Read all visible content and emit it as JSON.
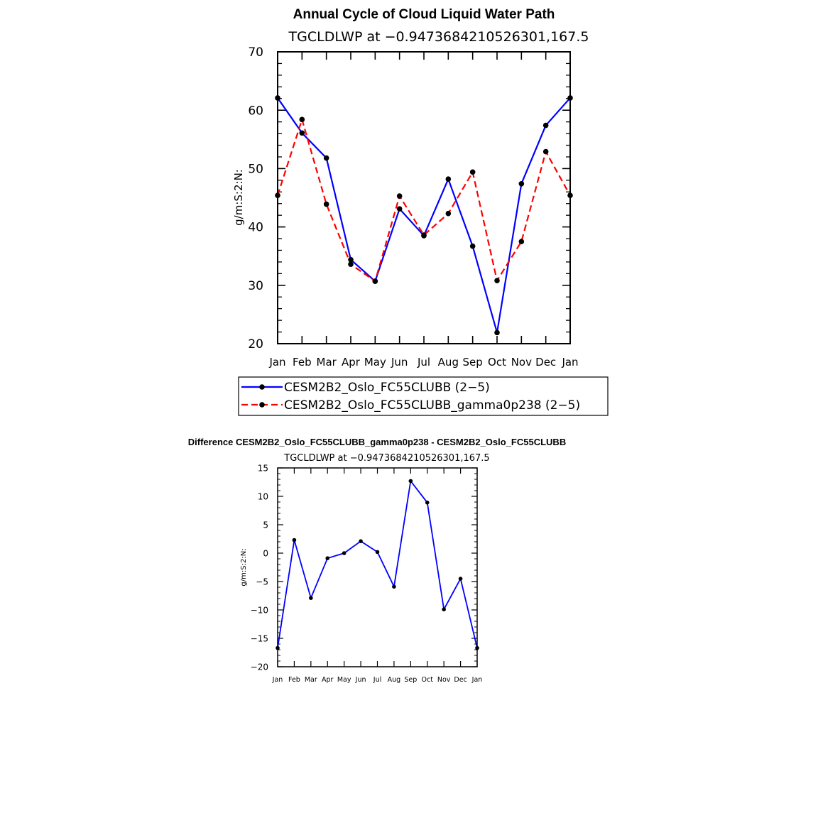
{
  "chart_data": [
    {
      "type": "line",
      "title": "Annual Cycle of Cloud Liquid Water Path",
      "subtitle": "TGCLDLWP at −0.9473684210526301,167.5",
      "xlabel": "",
      "ylabel": "g/m:S:2:N:",
      "categories": [
        "Jan",
        "Feb",
        "Mar",
        "Apr",
        "May",
        "Jun",
        "Jul",
        "Aug",
        "Sep",
        "Oct",
        "Nov",
        "Dec",
        "Jan"
      ],
      "ylim": [
        20,
        70
      ],
      "yticks": [
        "20",
        "30",
        "40",
        "50",
        "60",
        "70"
      ],
      "grid": false,
      "legend_position": "bottom",
      "series": [
        {
          "name": "CESM2B2_Oslo_FC55CLUBB (2−5)",
          "color": "#0000ff",
          "dash": "solid",
          "values": [
            62.1,
            56.1,
            51.8,
            34.4,
            30.7,
            43.1,
            38.5,
            48.2,
            36.7,
            21.9,
            47.4,
            57.4,
            62.1
          ]
        },
        {
          "name": "CESM2B2_Oslo_FC55CLUBB_gamma0p238 (2−5)",
          "color": "#ff0000",
          "dash": "dashed",
          "values": [
            45.4,
            58.4,
            43.9,
            33.6,
            30.7,
            45.3,
            38.6,
            42.3,
            49.4,
            30.8,
            37.5,
            52.9,
            45.4
          ]
        }
      ]
    },
    {
      "type": "line",
      "title": "Difference CESM2B2_Oslo_FC55CLUBB_gamma0p238 - CESM2B2_Oslo_FC55CLUBB",
      "subtitle": "TGCLDLWP at −0.9473684210526301,167.5",
      "xlabel": "",
      "ylabel": "g/m:S:2:N:",
      "categories": [
        "Jan",
        "Feb",
        "Mar",
        "Apr",
        "May",
        "Jun",
        "Jul",
        "Aug",
        "Sep",
        "Oct",
        "Nov",
        "Dec",
        "Jan"
      ],
      "ylim": [
        -20,
        15
      ],
      "yticks": [
        "−20",
        "−15",
        "−10",
        "−5",
        "0",
        "5",
        "10",
        "15"
      ],
      "grid": false,
      "series": [
        {
          "color": "#0000ff",
          "dash": "solid",
          "values": [
            -16.7,
            2.3,
            -7.9,
            -0.9,
            0.0,
            2.1,
            0.2,
            -5.9,
            12.7,
            8.9,
            -9.9,
            -4.5,
            -16.7
          ]
        }
      ]
    }
  ]
}
